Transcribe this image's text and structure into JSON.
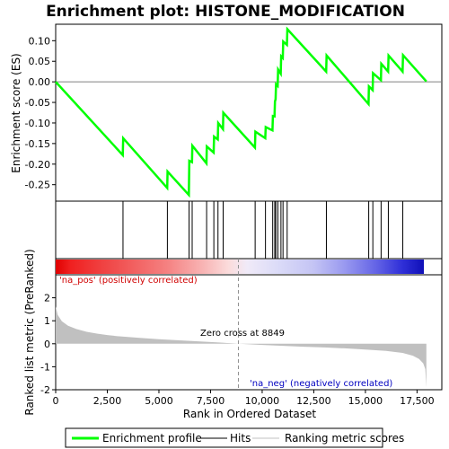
{
  "chart_data": {
    "type": "line",
    "title": "Enrichment plot: HISTONE_MODIFICATION",
    "top_panel": {
      "ylabel": "Enrichment score (ES)",
      "ylim": [
        -0.29,
        0.14
      ],
      "yticks": [
        0.1,
        0.05,
        0.0,
        -0.05,
        -0.1,
        -0.15,
        -0.2,
        -0.25
      ],
      "ytick_labels": [
        "0.10",
        "0.05",
        "0.00",
        "-0.05",
        "-0.10",
        "-0.15",
        "-0.20",
        "-0.25"
      ],
      "series": [
        {
          "name": "Enrichment profile",
          "color": "#00ff00",
          "x": [
            0,
            3250,
            3270,
            5400,
            5420,
            6450,
            6470,
            6600,
            6620,
            7300,
            7320,
            7650,
            7670,
            7850,
            7870,
            8100,
            8120,
            9650,
            9670,
            10150,
            10170,
            10500,
            10520,
            10600,
            10620,
            10650,
            10670,
            10750,
            10770,
            10900,
            10920,
            11000,
            11020,
            11200,
            11220,
            13100,
            13120,
            15150,
            15170,
            15350,
            15370,
            15750,
            15770,
            16100,
            16120,
            16800,
            16820,
            17950
          ],
          "y": [
            0.0,
            -0.178,
            -0.137,
            -0.258,
            -0.218,
            -0.275,
            -0.192,
            -0.195,
            -0.155,
            -0.198,
            -0.157,
            -0.172,
            -0.133,
            -0.14,
            -0.1,
            -0.115,
            -0.075,
            -0.16,
            -0.121,
            -0.137,
            -0.11,
            -0.118,
            -0.083,
            -0.084,
            -0.048,
            -0.042,
            -0.006,
            -0.01,
            0.03,
            0.02,
            0.062,
            0.058,
            0.098,
            0.09,
            0.128,
            0.025,
            0.064,
            -0.054,
            -0.011,
            -0.02,
            0.021,
            0.004,
            0.044,
            0.025,
            0.064,
            0.025,
            0.065,
            0.001
          ]
        }
      ]
    },
    "hits": {
      "legend": "Hits",
      "color": "#000000",
      "positions": [
        3260,
        5410,
        6460,
        6610,
        7310,
        7660,
        7860,
        8110,
        9660,
        10160,
        10510,
        10610,
        10660,
        10760,
        10910,
        11010,
        11210,
        13110,
        15160,
        15360,
        15760,
        16110,
        16810
      ]
    },
    "correlation_bar": {
      "positive_label": "'na_pos' (positively correlated)",
      "negative_label": "'na_neg' (negatively correlated)"
    },
    "bottom_panel": {
      "ylabel": "Ranked list metric (PreRanked)",
      "ylim": [
        -2.0,
        3.0
      ],
      "yticks": [
        2,
        1,
        0,
        -1,
        -2
      ],
      "ytick_labels": [
        "2",
        "1",
        "0",
        "-1",
        "-2"
      ],
      "zero_cross_label": "Zero cross at 8849",
      "zero_cross": 8849,
      "metric_points": [
        [
          0,
          1.62
        ],
        [
          100,
          1.25
        ],
        [
          300,
          0.98
        ],
        [
          600,
          0.78
        ],
        [
          1000,
          0.64
        ],
        [
          1500,
          0.52
        ],
        [
          2000,
          0.44
        ],
        [
          2500,
          0.38
        ],
        [
          3000,
          0.33
        ],
        [
          4000,
          0.26
        ],
        [
          5000,
          0.2
        ],
        [
          6000,
          0.15
        ],
        [
          7000,
          0.1
        ],
        [
          8000,
          0.05
        ],
        [
          8849,
          0.0
        ],
        [
          10000,
          -0.05
        ],
        [
          11000,
          -0.09
        ],
        [
          12000,
          -0.13
        ],
        [
          13000,
          -0.16
        ],
        [
          14000,
          -0.2
        ],
        [
          15000,
          -0.25
        ],
        [
          16000,
          -0.31
        ],
        [
          16800,
          -0.4
        ],
        [
          17300,
          -0.52
        ],
        [
          17600,
          -0.66
        ],
        [
          17800,
          -0.85
        ],
        [
          17900,
          -1.1
        ],
        [
          17950,
          -1.9
        ]
      ],
      "color": "#c0c0c0"
    },
    "xlabel": "Rank in Ordered Dataset",
    "xlim": [
      0,
      18700
    ],
    "xticks": [
      0,
      2500,
      5000,
      7500,
      10000,
      12500,
      15000,
      17500
    ],
    "xtick_labels": [
      "0",
      "2,500",
      "5,000",
      "7,500",
      "10,000",
      "12,500",
      "15,000",
      "17,500"
    ],
    "legend": [
      {
        "label": "Enrichment profile",
        "color": "#00ff00"
      },
      {
        "label": "Hits",
        "color": "#000000"
      },
      {
        "label": "Ranking metric scores",
        "color": "#c0c0c0"
      }
    ],
    "legend_placement": "bottom",
    "grid": false
  }
}
